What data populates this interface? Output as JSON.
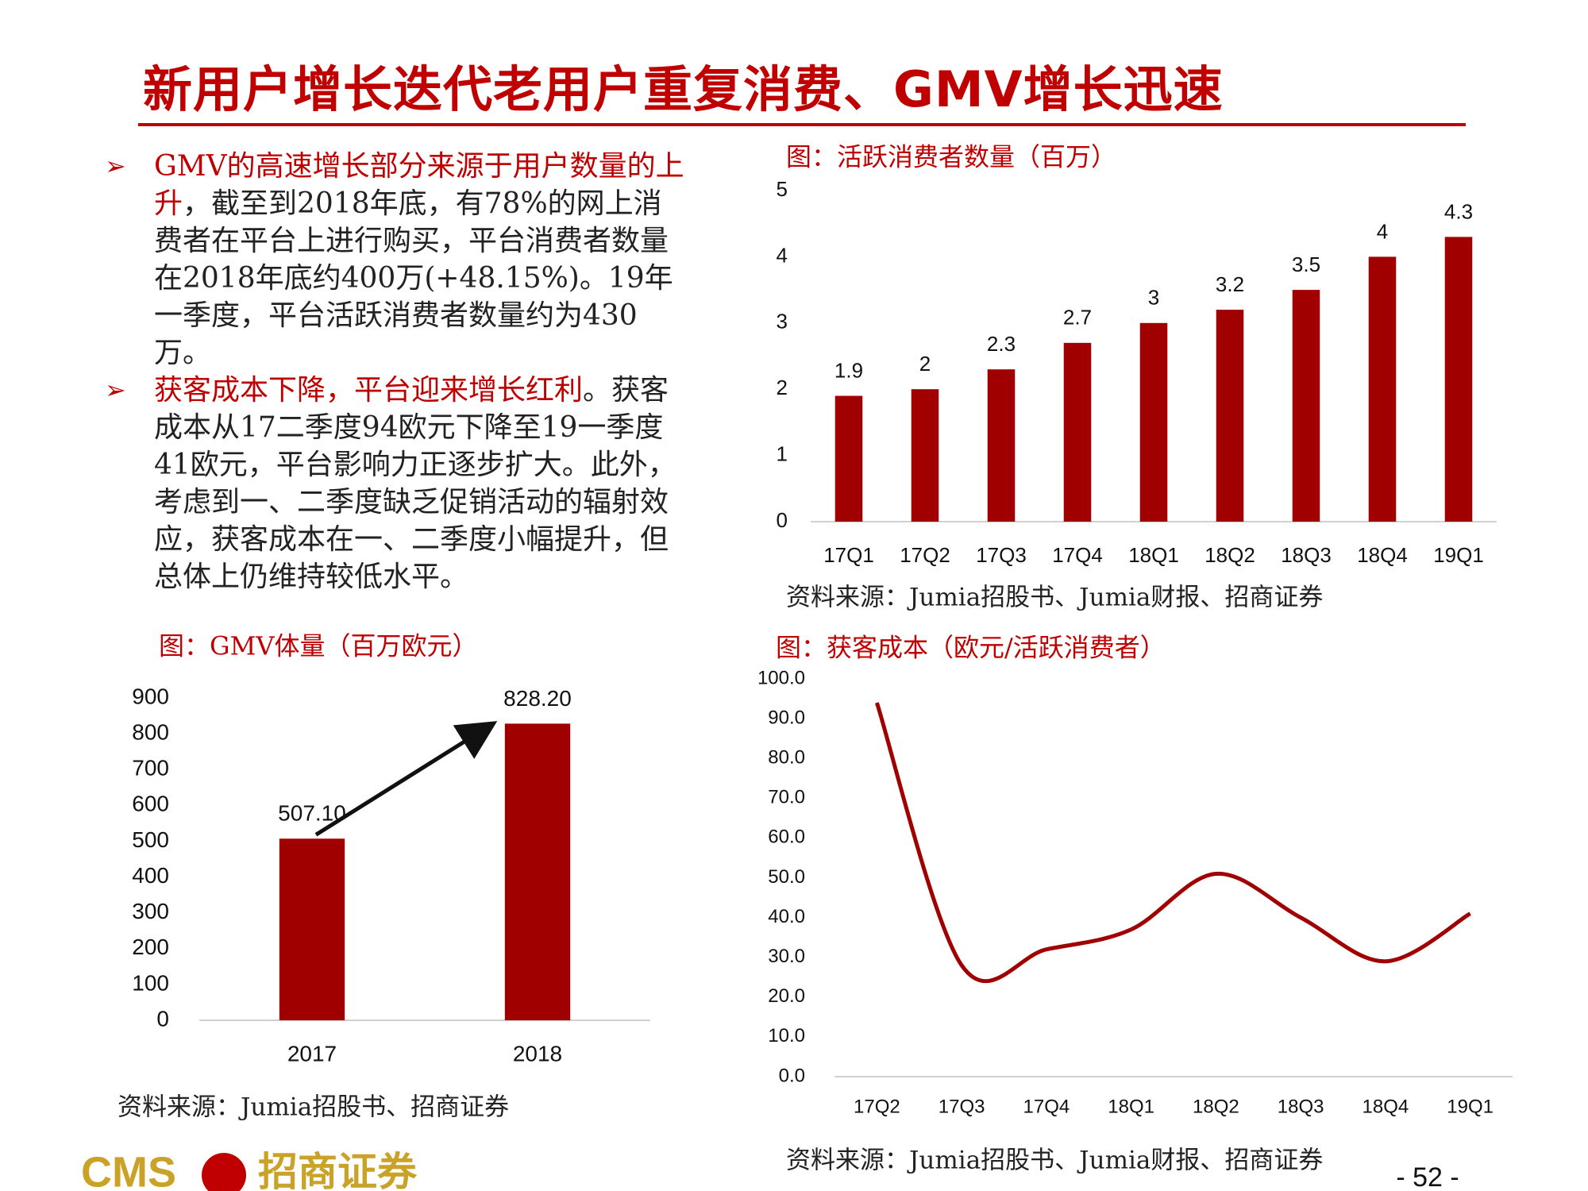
{
  "header": {
    "title": "新用户增长迭代老用户重复消费、GMV增长迅速"
  },
  "bullets": [
    [
      "GMV的高速增长部分来源于用户数量的上升",
      "，截至到2018年底，有78%的网上消费者在平台上进行购买，平台消费者数量在2018年底约400万(+48.15%)。19年一季度，平台活跃消费者数量约为430万。"
    ],
    [
      "获客成本下降，平台迎来增长红利",
      "。获客成本从17二季度94欧元下降至19一季度41欧元，平台影响力正逐步扩大。此外，考虑到一、二季度缺乏促销活动的辐射效应，获客成本在一、二季度小幅提升，但总体上仍维持较低水平。"
    ]
  ],
  "chart_data": [
    {
      "type": "bar",
      "title": "图：活跃消费者数量（百万）",
      "categories": [
        "17Q1",
        "17Q2",
        "17Q3",
        "17Q4",
        "18Q1",
        "18Q2",
        "18Q3",
        "18Q4",
        "19Q1"
      ],
      "values": [
        1.9,
        2,
        2.3,
        2.7,
        3,
        3.2,
        3.5,
        4,
        4.3
      ],
      "color": "#a00000",
      "ylim": [
        0,
        5
      ],
      "yticks": [
        0,
        1,
        2,
        3,
        4,
        5
      ],
      "grid": false,
      "source": "资料来源：Jumia招股书、Jumia财报、招商证券"
    },
    {
      "type": "bar",
      "title": "图：GMV体量（百万欧元）",
      "categories": [
        "2017",
        "2018"
      ],
      "values": [
        507.1,
        828.2
      ],
      "value_labels": [
        "507.10",
        "828.20"
      ],
      "color": "#a00000",
      "ylim": [
        0,
        900
      ],
      "yticks": [
        0,
        100,
        200,
        300,
        400,
        500,
        600,
        700,
        800,
        900
      ],
      "grid": false,
      "source": "资料来源：Jumia招股书、招商证券"
    },
    {
      "type": "line",
      "title": "图：获客成本（欧元/活跃消费者）",
      "categories": [
        "17Q2",
        "17Q3",
        "17Q4",
        "18Q1",
        "18Q2",
        "18Q3",
        "18Q4",
        "19Q1"
      ],
      "values": [
        94,
        28,
        32,
        37,
        51,
        40,
        29,
        41
      ],
      "color": "#a00000",
      "ylim": [
        0,
        100
      ],
      "yticks": [
        {
          "value": 0,
          "label": "0.0"
        },
        {
          "value": 10,
          "label": "10.0"
        },
        {
          "value": 20,
          "label": "20.0"
        },
        {
          "value": 30,
          "label": "30.0"
        },
        {
          "value": 40,
          "label": "40.0"
        },
        {
          "value": 50,
          "label": "50.0"
        },
        {
          "value": 60,
          "label": "60.0"
        },
        {
          "value": 70,
          "label": "70.0"
        },
        {
          "value": 80,
          "label": "80.0"
        },
        {
          "value": 90,
          "label": "90.0"
        },
        {
          "value": 100,
          "label": "100.0"
        }
      ],
      "grid": false,
      "source": "资料来源：Jumia招股书、Jumia财报、招商证券"
    }
  ],
  "page_number": "- 52 -",
  "logo": {
    "latin": "CMS",
    "chinese": "招商证券"
  }
}
